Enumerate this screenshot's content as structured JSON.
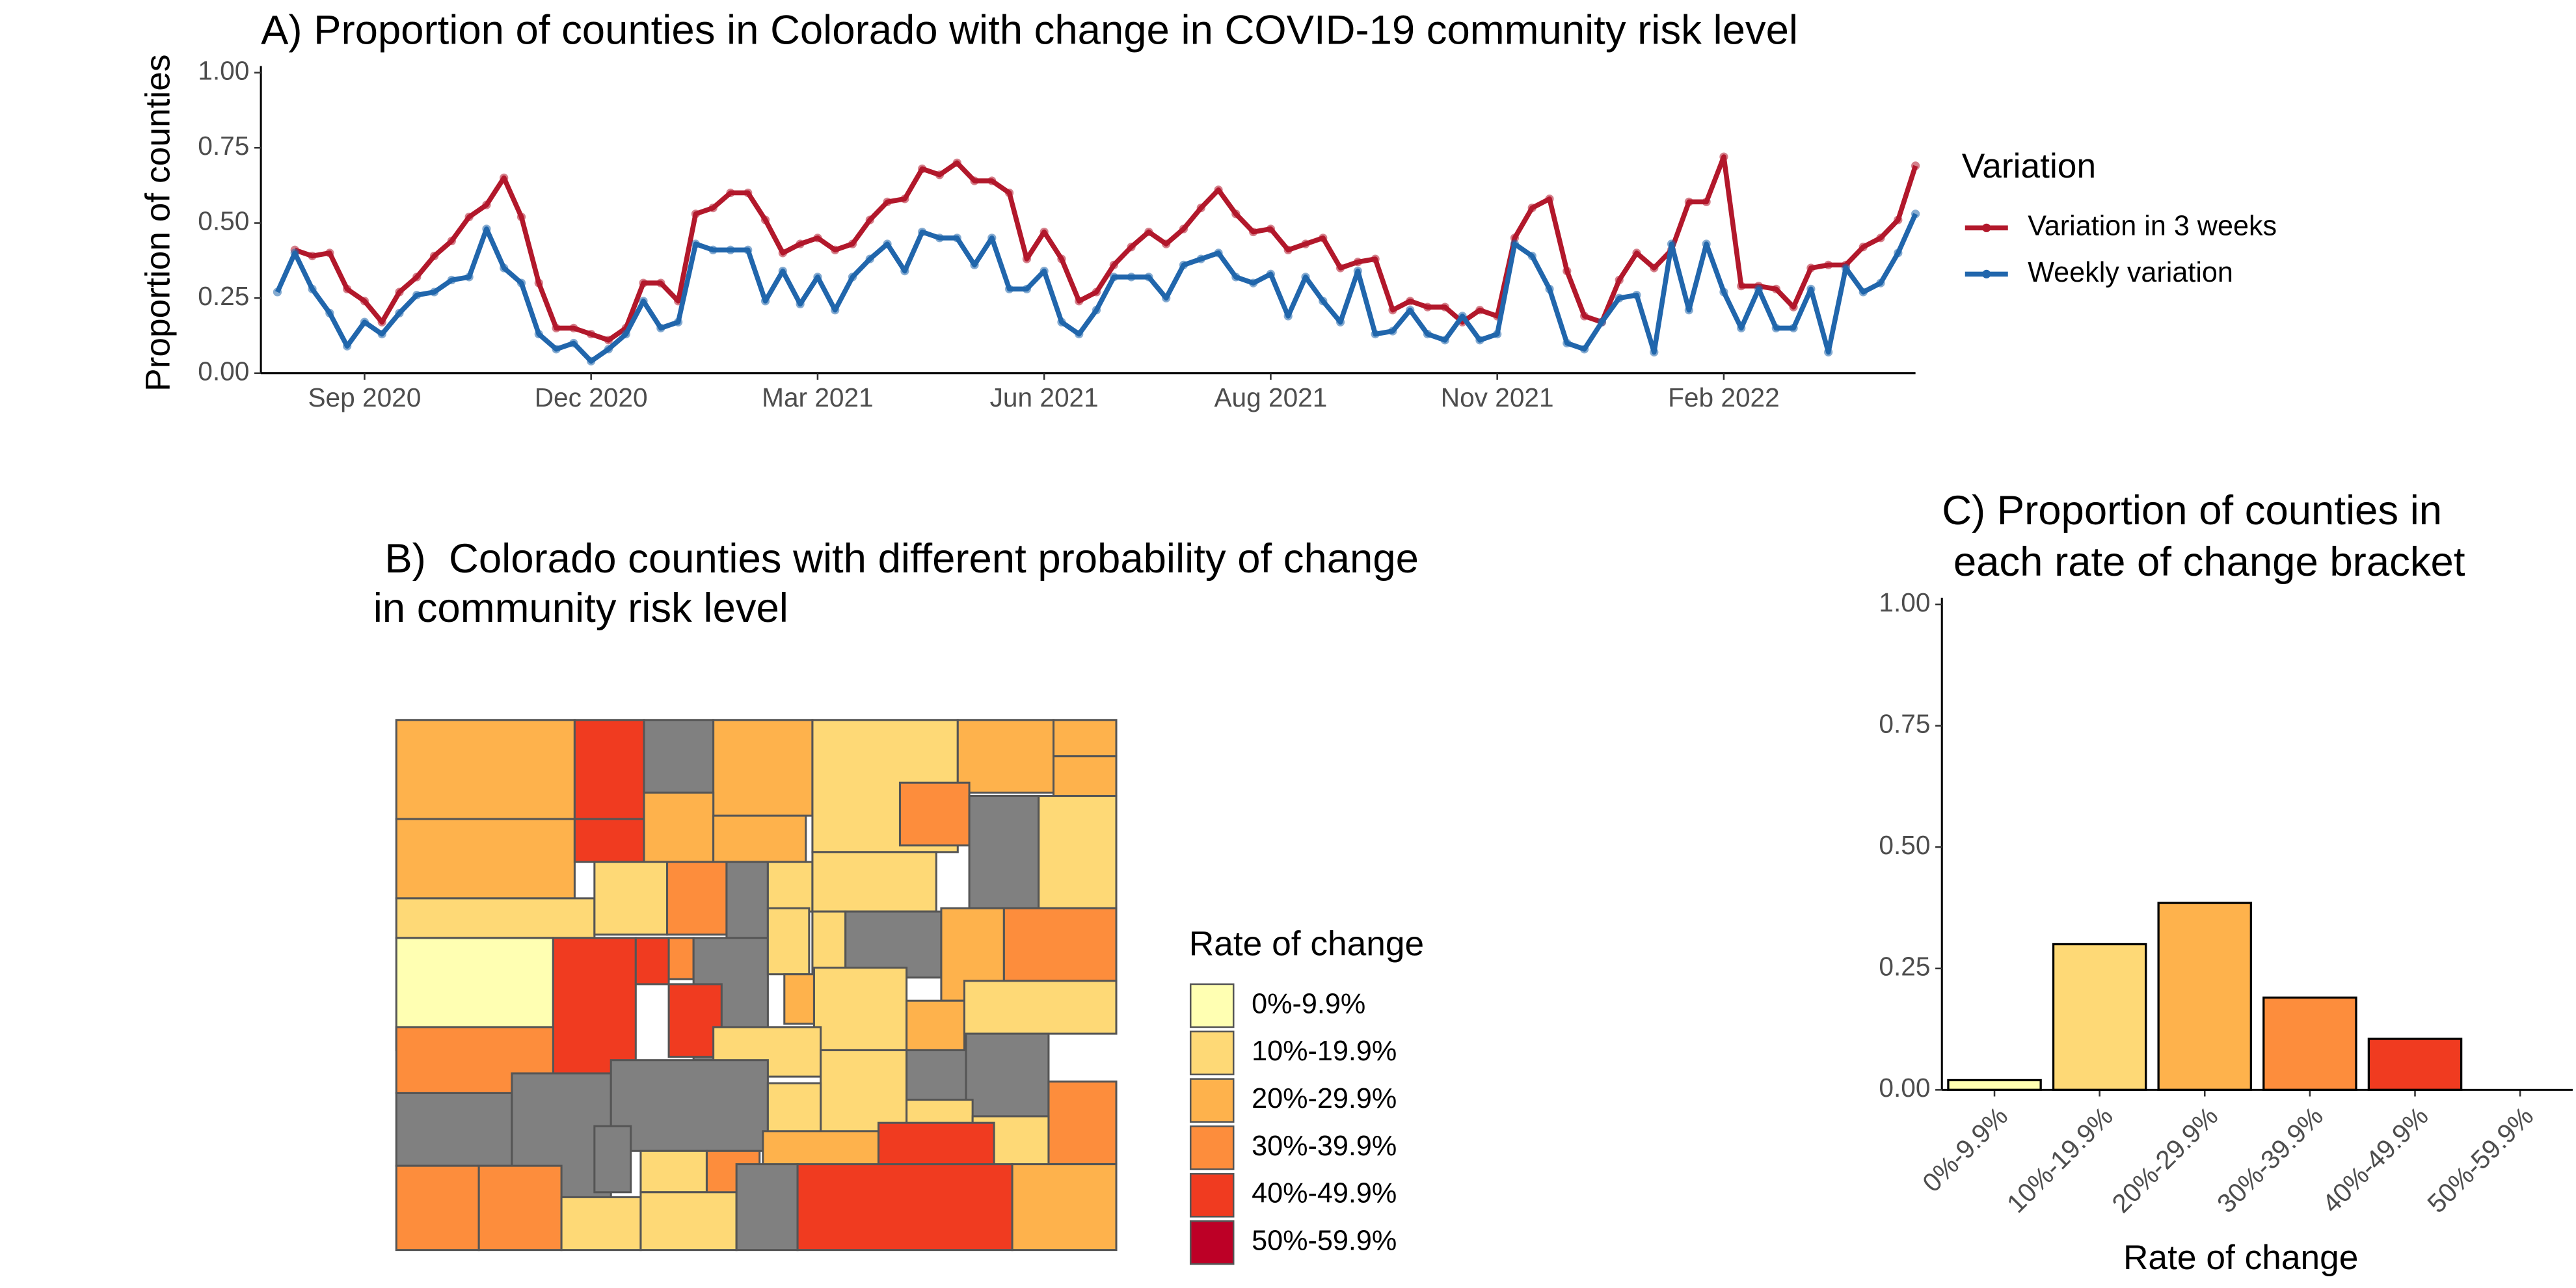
{
  "chart_data": [
    {
      "type": "line",
      "title": "A) Proportion of counties in Colorado with change in COVID-19 community risk level",
      "y_label": "Proportion of counties",
      "legend_title": "Variation",
      "legend_position": "right",
      "categories": [
        null,
        null,
        null,
        null,
        null,
        "Sep 2020",
        null,
        null,
        null,
        null,
        null,
        null,
        null,
        null,
        null,
        null,
        null,
        null,
        "Dec 2020",
        null,
        null,
        null,
        null,
        null,
        null,
        null,
        null,
        null,
        null,
        null,
        null,
        "Mar 2021",
        null,
        null,
        null,
        null,
        null,
        null,
        null,
        null,
        null,
        null,
        null,
        null,
        "Jun 2021",
        null,
        null,
        null,
        null,
        null,
        null,
        null,
        null,
        null,
        null,
        null,
        null,
        "Aug 2021",
        null,
        null,
        null,
        null,
        null,
        null,
        null,
        null,
        null,
        null,
        null,
        null,
        "Nov 2021",
        null,
        null,
        null,
        null,
        null,
        null,
        null,
        null,
        null,
        null,
        null,
        null,
        "Feb 2022",
        null,
        null,
        null,
        null,
        null,
        null,
        null,
        null,
        null,
        null,
        null
      ],
      "ylim": [
        0,
        1
      ],
      "yticks": [
        {
          "value": 0,
          "label": "0.00"
        },
        {
          "value": 0.25,
          "label": "0.25"
        },
        {
          "value": 0.5,
          "label": "0.50"
        },
        {
          "value": 0.75,
          "label": "0.75"
        },
        {
          "value": 1,
          "label": "1.00"
        }
      ],
      "grid": false,
      "series": [
        {
          "name": "Variation in 3 weeks",
          "color": "#b2182b",
          "values": [
            null,
            0.41,
            0.39,
            0.4,
            0.28,
            0.24,
            0.17,
            0.27,
            0.32,
            0.39,
            0.44,
            0.52,
            0.56,
            0.65,
            0.52,
            0.3,
            0.15,
            0.15,
            0.13,
            0.11,
            0.15,
            0.3,
            0.3,
            0.24,
            0.53,
            0.55,
            0.6,
            0.6,
            0.51,
            0.4,
            0.43,
            0.45,
            0.41,
            0.43,
            0.51,
            0.57,
            0.58,
            0.68,
            0.66,
            0.7,
            0.64,
            0.64,
            0.6,
            0.38,
            0.47,
            0.38,
            0.24,
            0.27,
            0.36,
            0.42,
            0.47,
            0.43,
            0.48,
            0.55,
            0.61,
            0.53,
            0.47,
            0.48,
            0.41,
            0.43,
            0.45,
            0.35,
            0.37,
            0.38,
            0.21,
            0.24,
            0.22,
            0.22,
            0.17,
            0.21,
            0.19,
            0.45,
            0.55,
            0.58,
            0.34,
            0.19,
            0.17,
            0.31,
            0.4,
            0.35,
            0.41,
            0.57,
            0.57,
            0.72,
            0.29,
            0.29,
            0.28,
            0.22,
            0.35,
            0.36,
            0.36,
            0.42,
            0.45,
            0.51,
            0.69
          ]
        },
        {
          "name": "Weekly variation",
          "color": "#2166ac",
          "values": [
            0.27,
            0.4,
            0.28,
            0.2,
            0.09,
            0.17,
            0.13,
            0.2,
            0.26,
            0.27,
            0.31,
            0.32,
            0.48,
            0.35,
            0.3,
            0.13,
            0.08,
            0.1,
            0.04,
            0.08,
            0.13,
            0.24,
            0.15,
            0.17,
            0.43,
            0.41,
            0.41,
            0.41,
            0.24,
            0.34,
            0.23,
            0.32,
            0.21,
            0.32,
            0.38,
            0.43,
            0.34,
            0.47,
            0.45,
            0.45,
            0.36,
            0.45,
            0.28,
            0.28,
            0.34,
            0.17,
            0.13,
            0.21,
            0.32,
            0.32,
            0.32,
            0.25,
            0.36,
            0.38,
            0.4,
            0.32,
            0.3,
            0.33,
            0.19,
            0.32,
            0.24,
            0.17,
            0.34,
            0.13,
            0.14,
            0.21,
            0.13,
            0.11,
            0.19,
            0.11,
            0.13,
            0.43,
            0.39,
            0.28,
            0.1,
            0.08,
            0.17,
            0.25,
            0.26,
            0.07,
            0.43,
            0.21,
            0.43,
            0.27,
            0.15,
            0.28,
            0.15,
            0.15,
            0.28,
            0.07,
            0.35,
            0.27,
            0.3,
            0.4,
            0.53
          ]
        }
      ]
    },
    {
      "type": "map",
      "title": [
        " B)  Colorado counties with different probability of change",
        "in community risk level"
      ],
      "legend_title": "Rate of change",
      "legend": [
        {
          "label": "0%-9.9%",
          "color": "#ffffb2"
        },
        {
          "label": "10%-19.9%",
          "color": "#fed976"
        },
        {
          "label": "20%-29.9%",
          "color": "#feb24c"
        },
        {
          "label": "30%-39.9%",
          "color": "#fd8d3c"
        },
        {
          "label": "40%-49.9%",
          "color": "#f03b20"
        },
        {
          "label": "50%-59.9%",
          "color": "#bd0026"
        }
      ]
    },
    {
      "type": "bar",
      "title": [
        "C) Proportion of counties in",
        " each rate of change bracket"
      ],
      "x_label": "Rate of change",
      "categories": [
        "0%-9.9%",
        "10%-19.9%",
        "20%-29.9%",
        "30%-39.9%",
        "40%-49.9%",
        "50%-59.9%"
      ],
      "values": [
        0.02,
        0.3,
        0.385,
        0.19,
        0.105,
        0
      ],
      "colors": [
        "#ffffb2",
        "#fed976",
        "#feb24c",
        "#fd8d3c",
        "#f03b20",
        "#bd0026"
      ],
      "ylim": [
        0,
        1
      ],
      "yticks": [
        {
          "value": 0,
          "label": "0.00"
        },
        {
          "value": 0.25,
          "label": "0.25"
        },
        {
          "value": 0.5,
          "label": "0.50"
        },
        {
          "value": 0.75,
          "label": "0.75"
        },
        {
          "value": 1,
          "label": "1.00"
        }
      ],
      "grid": false
    }
  ]
}
